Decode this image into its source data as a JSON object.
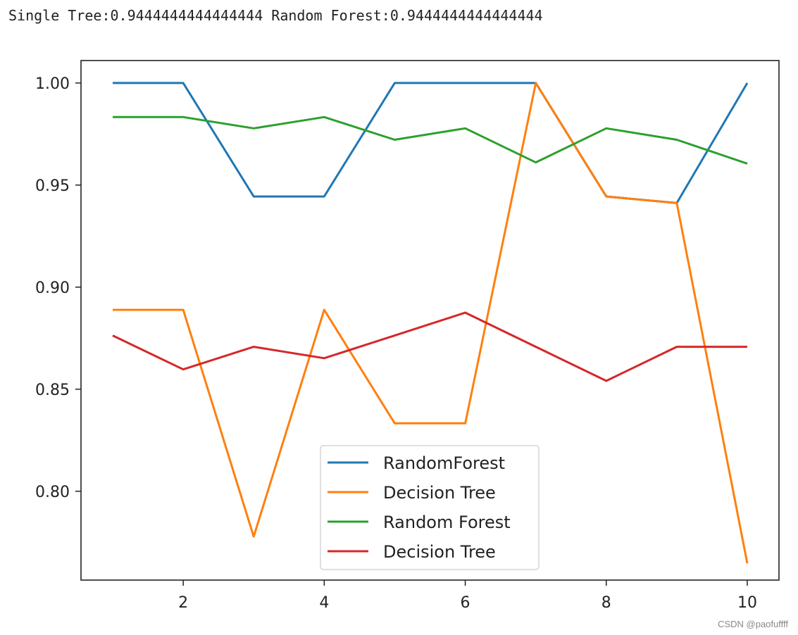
{
  "output": {
    "text": "Single Tree:0.9444444444444444 Random Forest:0.9444444444444444"
  },
  "watermark": "CSDN @paofuffff",
  "chart_data": {
    "type": "line",
    "x": [
      1,
      2,
      3,
      4,
      5,
      6,
      7,
      8,
      9,
      10
    ],
    "xlim": [
      0.55,
      10.45
    ],
    "ylim": [
      0.7565,
      1.011
    ],
    "xticks": [
      2,
      4,
      6,
      8,
      10
    ],
    "yticks": [
      0.8,
      0.85,
      0.9,
      0.95,
      1.0
    ],
    "xtick_labels": [
      "2",
      "4",
      "6",
      "8",
      "10"
    ],
    "ytick_labels": [
      "0.80",
      "0.85",
      "0.90",
      "0.95",
      "1.00"
    ],
    "grid": false,
    "legend_position": "lower-center",
    "series": [
      {
        "name": "RandomForest",
        "color": "#1f77b4",
        "values": [
          1.0,
          1.0,
          0.9444,
          0.9444,
          1.0,
          1.0,
          1.0,
          0.9444,
          0.9412,
          1.0
        ]
      },
      {
        "name": "Decision Tree",
        "color": "#ff7f0e",
        "values": [
          0.8889,
          0.8889,
          0.7778,
          0.8889,
          0.8333,
          0.8333,
          1.0,
          0.9444,
          0.9412,
          0.7647
        ]
      },
      {
        "name": "Random Forest",
        "color": "#2ca02c",
        "values": [
          0.9833,
          0.9833,
          0.9778,
          0.9833,
          0.9722,
          0.9778,
          0.9611,
          0.9778,
          0.9722,
          0.9605
        ]
      },
      {
        "name": "Decision Tree",
        "color": "#d62728",
        "values": [
          0.8763,
          0.8597,
          0.8708,
          0.8652,
          0.8763,
          0.8875,
          0.8708,
          0.8541,
          0.8708,
          0.8708
        ]
      }
    ]
  }
}
